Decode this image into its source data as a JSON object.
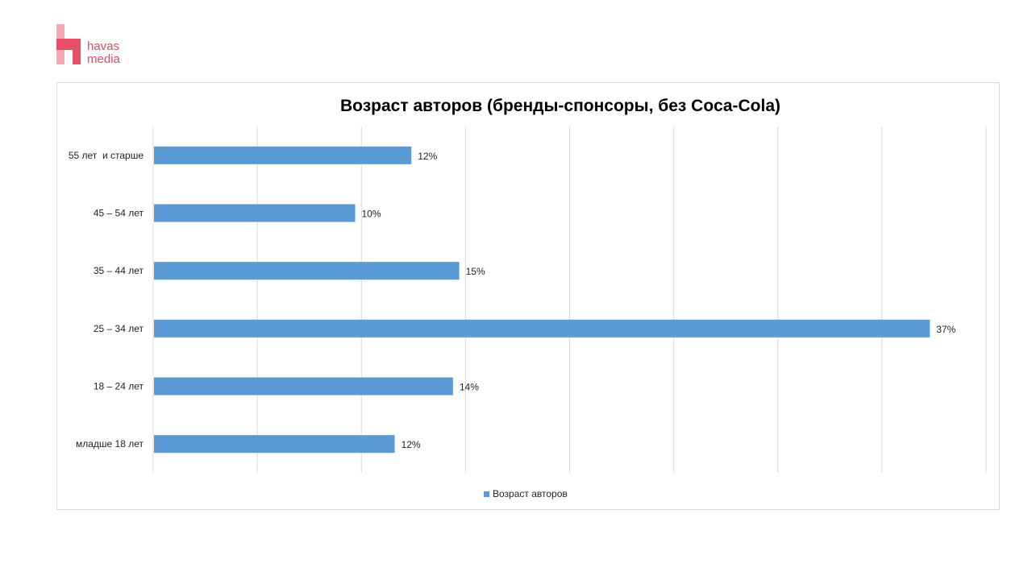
{
  "logo": {
    "line1": "havas",
    "line2": "media"
  },
  "chart_data": {
    "type": "bar",
    "orientation": "horizontal",
    "title": "Возраст авторов (бренды-спонсоры, без Coca-Cola)",
    "categories": [
      "55 лет  и старше",
      "45 – 54 лет",
      "35 – 44 лет",
      "25 – 34 лет",
      "18 – 24 лет",
      "младше 18 лет"
    ],
    "series": [
      {
        "name": "Возраст авторов",
        "values": [
          12.4,
          9.7,
          14.7,
          37.3,
          14.4,
          11.6
        ],
        "labels": [
          "12%",
          "10%",
          "15%",
          "37%",
          "14%",
          "12%"
        ],
        "color": "#5b9bd5"
      }
    ],
    "xlim": [
      0,
      40
    ],
    "grid": true,
    "legend": "bottom"
  }
}
